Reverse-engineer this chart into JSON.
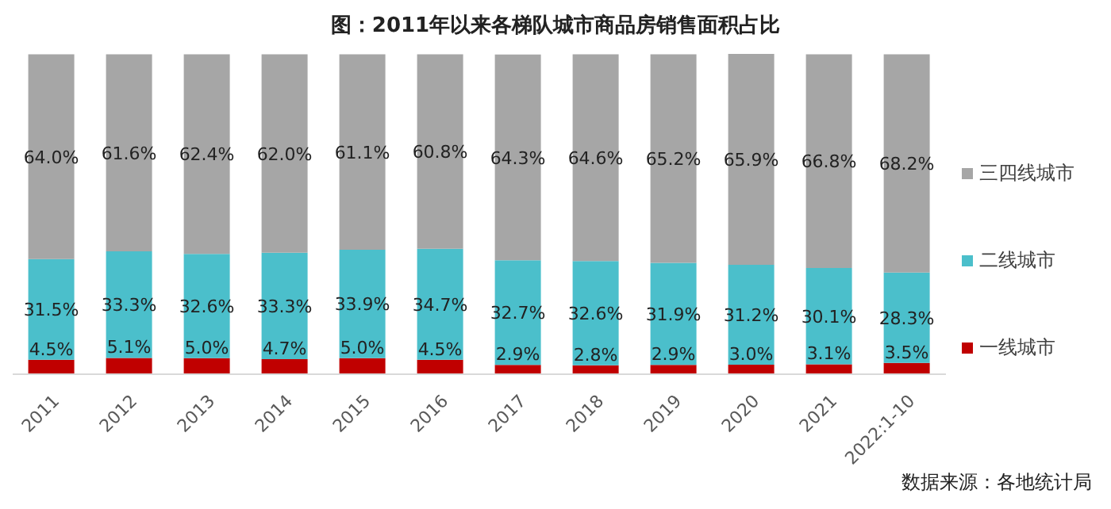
{
  "chart_data": {
    "type": "bar",
    "title": "图：2011年以来各梯队城市商品房销售面积占比",
    "categories": [
      "2011",
      "2012",
      "2013",
      "2014",
      "2015",
      "2016",
      "2017",
      "2018",
      "2019",
      "2020",
      "2021",
      "2022:1-10"
    ],
    "stacked": true,
    "legend": "right",
    "series": [
      {
        "name": "一线城市",
        "color": "#c00000",
        "values": [
          4.5,
          5.1,
          5.0,
          4.7,
          5.0,
          4.5,
          2.9,
          2.8,
          2.9,
          3.0,
          3.1,
          3.5
        ],
        "value_labels": [
          "4.5%",
          "5.1%",
          "5.0%",
          "4.7%",
          "5.0%",
          "4.5%",
          "2.9%",
          "2.8%",
          "2.9%",
          "3.0%",
          "3.1%",
          "3.5%"
        ]
      },
      {
        "name": "二线城市",
        "color": "#4bbfcb",
        "values": [
          31.5,
          33.3,
          32.6,
          33.3,
          33.9,
          34.7,
          32.7,
          32.6,
          31.9,
          31.2,
          30.1,
          28.3
        ],
        "value_labels": [
          "31.5%",
          "33.3%",
          "32.6%",
          "33.3%",
          "33.9%",
          "34.7%",
          "32.7%",
          "32.6%",
          "31.9%",
          "31.2%",
          "30.1%",
          "28.3%"
        ]
      },
      {
        "name": "三四线城市",
        "color": "#a6a6a6",
        "values": [
          64.0,
          61.6,
          62.4,
          62.0,
          61.1,
          60.8,
          64.3,
          64.6,
          65.2,
          65.9,
          66.8,
          68.2
        ],
        "value_labels": [
          "64.0%",
          "61.6%",
          "62.4%",
          "62.0%",
          "61.1%",
          "60.8%",
          "64.3%",
          "64.6%",
          "65.2%",
          "65.9%",
          "66.8%",
          "68.2%"
        ]
      }
    ],
    "annotations": [
      "数据来源：各地统计局"
    ]
  }
}
